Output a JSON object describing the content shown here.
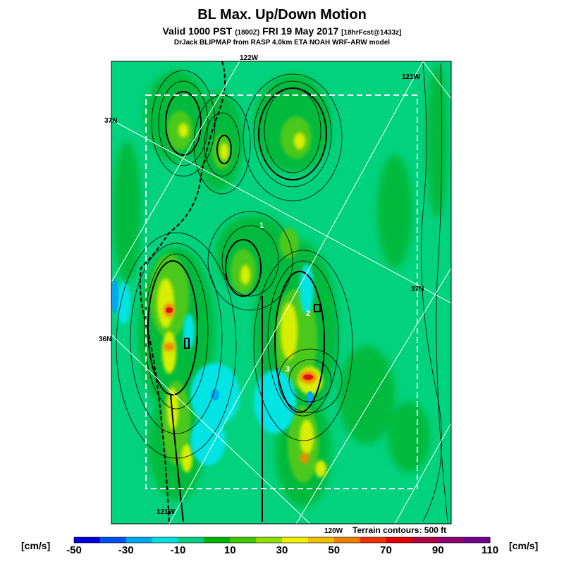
{
  "header": {
    "title": "BL Max. Up/Down Motion",
    "valid_prefix": "Valid 1000 PST",
    "valid_z": "(1800Z)",
    "valid_date": "FRI 19 May 2017",
    "forecast": "[18hrFcst@1433z]",
    "credit": "DrJack BLIPMAP from RASP 4.0km ETA NOAH WRF-ARW model"
  },
  "map": {
    "lon_labels": [
      "122W",
      "121W",
      "121W",
      "120W"
    ],
    "lat_labels": [
      "37N",
      "37N",
      "36N"
    ],
    "markers": [
      "1",
      "2",
      "3"
    ],
    "terrain_note": "Terrain contours: 500 ft"
  },
  "colorbar": {
    "units": "[cm/s]",
    "labels": [
      "-50",
      "-30",
      "-10",
      "10",
      "30",
      "50",
      "70",
      "90",
      "110"
    ],
    "colors": [
      "#0000dd",
      "#0050f0",
      "#00a8f0",
      "#00e0e0",
      "#00d080",
      "#00b400",
      "#40c800",
      "#90e000",
      "#f0f000",
      "#f0c000",
      "#f08000",
      "#f03000",
      "#e00000",
      "#b00040",
      "#900070",
      "#700090"
    ]
  },
  "style": {
    "background_color": "#00d27d",
    "box_color": "#ffffff",
    "contour_color": "#000000"
  }
}
